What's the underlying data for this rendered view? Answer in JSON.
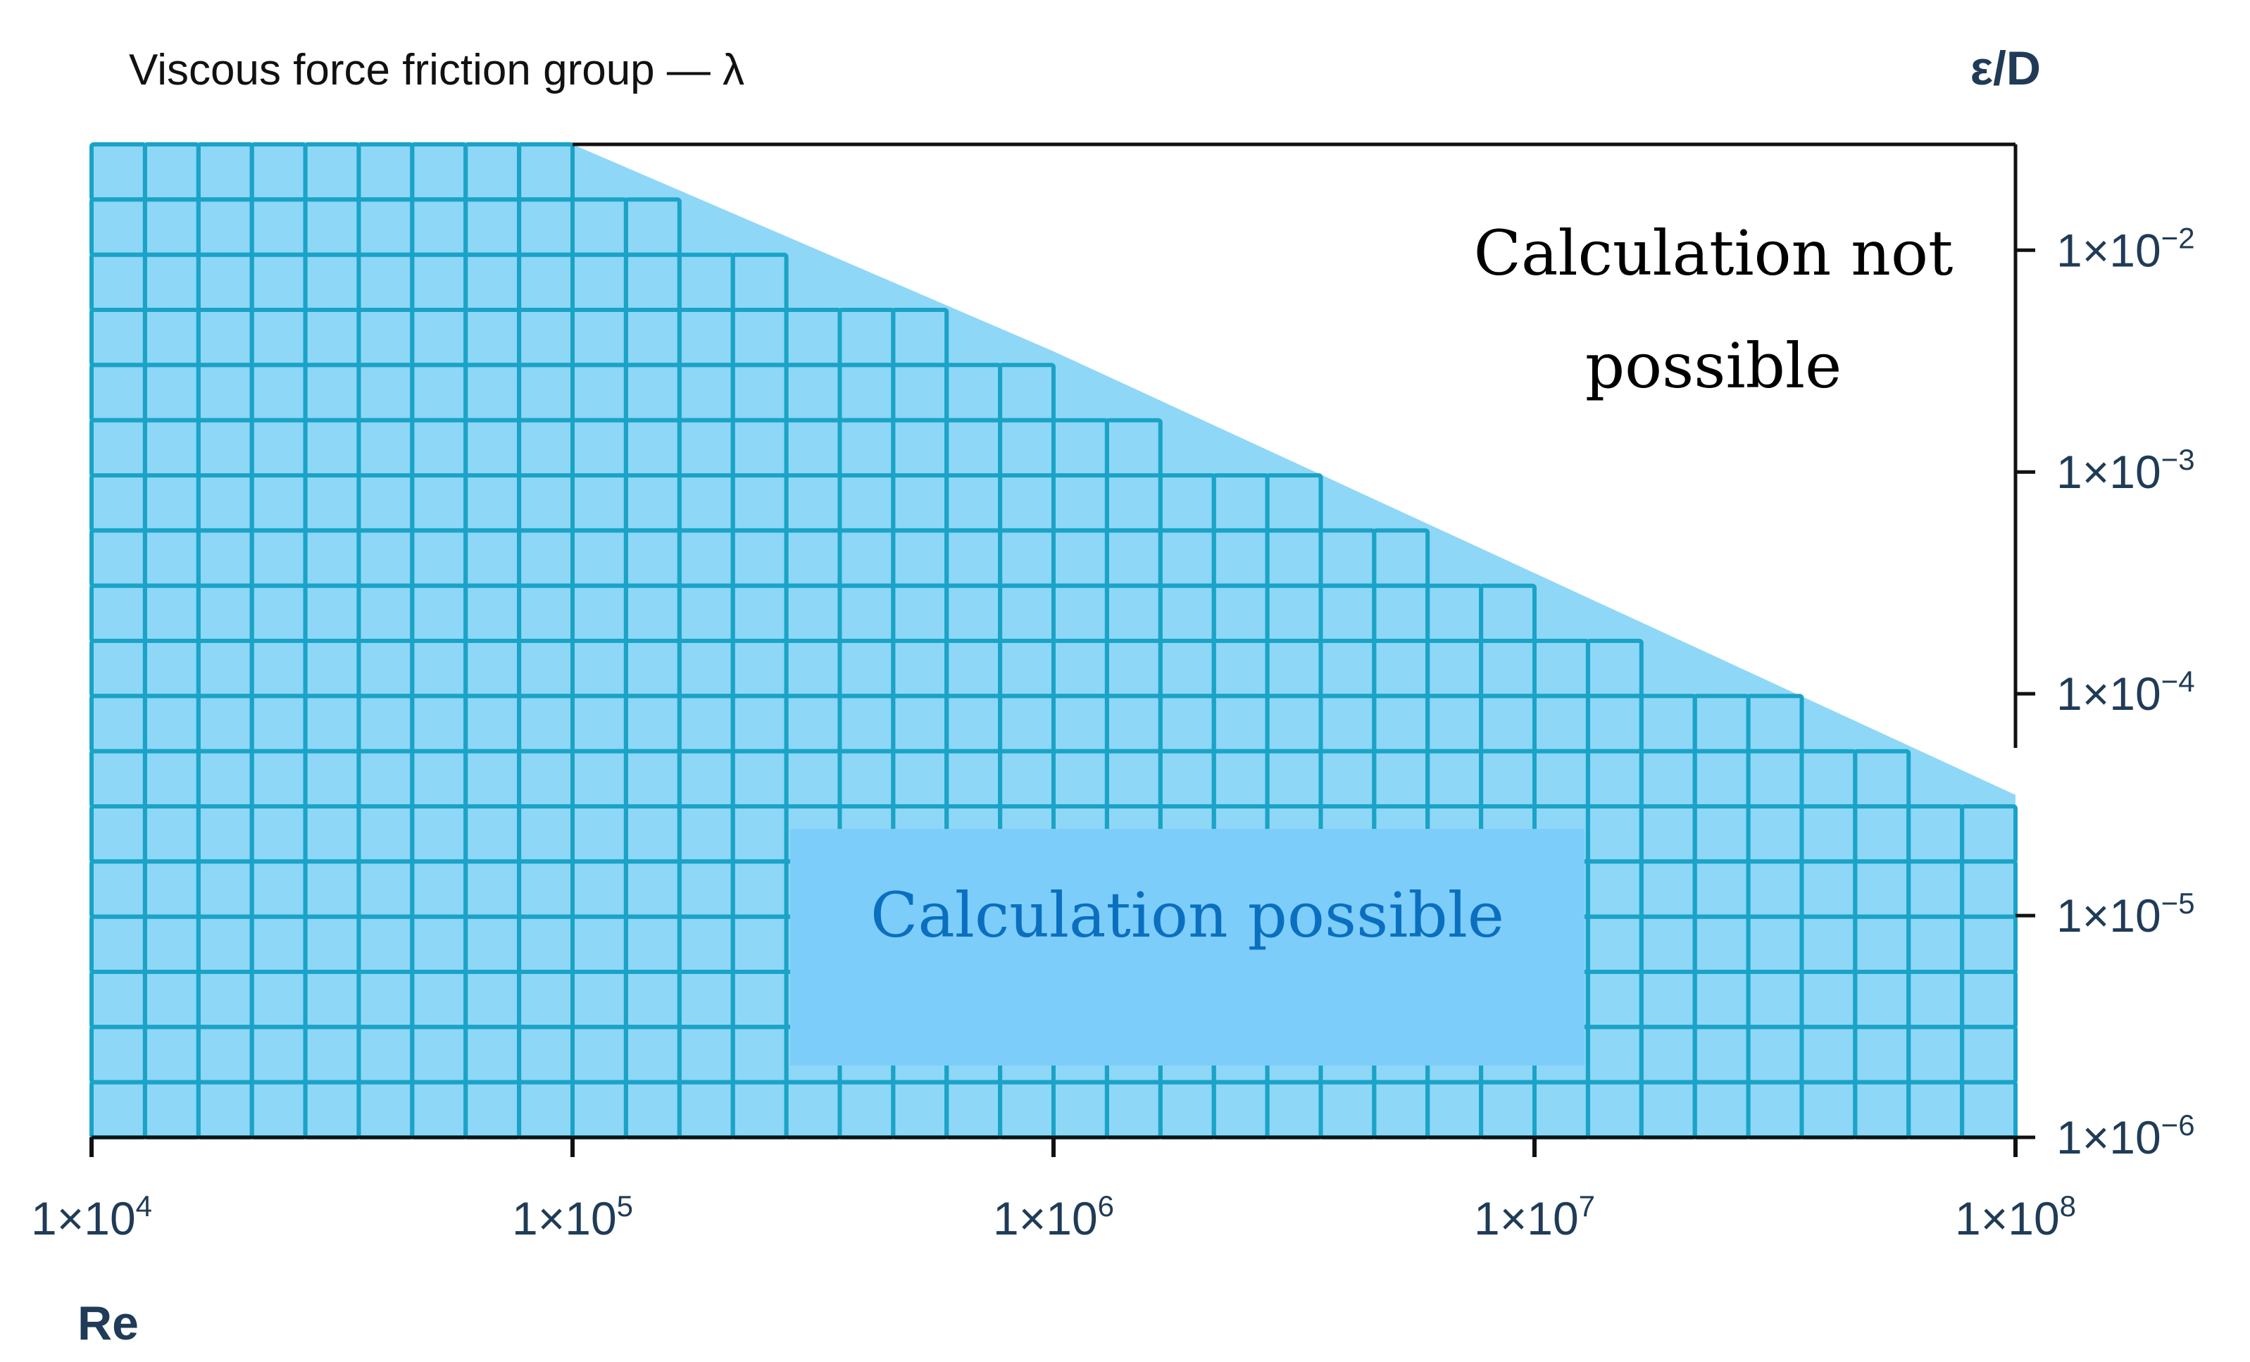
{
  "chart_data": {
    "type": "area",
    "title": "Viscous force friction group — λ",
    "xlabel": "Re",
    "ylabel": "ε/D",
    "x_scale": "log",
    "y_scale": "log",
    "xlim": [
      10000,
      100000000
    ],
    "ylim": [
      1e-06,
      0.03
    ],
    "x_ticks": [
      {
        "value": 10000,
        "label": "1×10",
        "exp": "4"
      },
      {
        "value": 100000,
        "label": "1×10",
        "exp": "5"
      },
      {
        "value": 1000000,
        "label": "1×10",
        "exp": "6"
      },
      {
        "value": 10000000,
        "label": "1×10",
        "exp": "7"
      },
      {
        "value": 100000000,
        "label": "1×10",
        "exp": "8"
      }
    ],
    "y_ticks": [
      {
        "value": 0.01,
        "label": "1×10",
        "exp": "−2"
      },
      {
        "value": 0.001,
        "label": "1×10",
        "exp": "−3"
      },
      {
        "value": 0.0001,
        "label": "1×10",
        "exp": "−4"
      },
      {
        "value": 1e-05,
        "label": "1×10",
        "exp": "−5"
      },
      {
        "value": 1e-06,
        "label": "1×10",
        "exp": "−6"
      }
    ],
    "boundary": {
      "x": [
        10000,
        100000,
        1000000,
        10000000,
        100000000
      ],
      "y": [
        0.03,
        0.03,
        0.0035,
        0.00035,
        3.5e-05
      ]
    },
    "regions": {
      "possible": {
        "label": "Calculation possible",
        "color": "#8fd7f7"
      },
      "not_possible": {
        "label_line1": "Calculation not",
        "label_line2": "possible"
      }
    },
    "grid": true,
    "colors": {
      "fill": "#8fd7f7",
      "grid": "#1aa3c7",
      "label_box": "#7dcdfb",
      "possible_text": "#0a6fbf",
      "axis_text": "#1f3b57",
      "axis": "#111111"
    }
  }
}
